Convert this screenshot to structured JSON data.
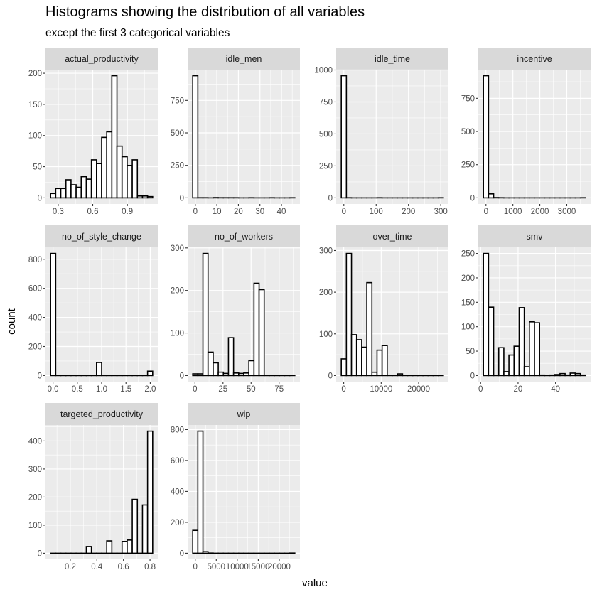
{
  "chart_data": {
    "type": "bar",
    "title": "Histograms showing the distribution of all variables",
    "subtitle": "except the first 3 categorical variables",
    "xlabel": "value",
    "ylabel": "count",
    "grid": true,
    "colors": {
      "panel_bg": "#EBEBEB",
      "strip_bg": "#D9D9D9",
      "bar_fill": "#FFFFFF",
      "bar_outline": "#000000",
      "axis_text": "#4D4D4D"
    },
    "panels": [
      {
        "name": "actual_productivity",
        "bin_range": [
          0.234,
          1.12
        ],
        "counts": [
          7,
          15,
          15,
          29,
          21,
          17,
          34,
          30,
          61,
          55,
          97,
          106,
          196,
          83,
          66,
          52,
          61,
          3,
          3,
          2
        ],
        "xticks": [
          {
            "value": 0.3,
            "label": "0.3"
          },
          {
            "value": 0.6,
            "label": "0.6"
          },
          {
            "value": 0.9,
            "label": "0.9"
          }
        ],
        "yticks": [
          {
            "value": 0,
            "label": "0"
          },
          {
            "value": 50,
            "label": "50"
          },
          {
            "value": 100,
            "label": "100"
          },
          {
            "value": 150,
            "label": "150"
          },
          {
            "value": 200,
            "label": "200"
          }
        ]
      },
      {
        "name": "idle_men",
        "bin_range": [
          -1.2,
          46.2
        ],
        "counts": [
          940,
          1,
          1,
          0,
          2,
          1,
          1,
          1,
          1,
          0,
          0,
          1,
          0,
          0,
          0,
          1,
          0,
          0,
          0,
          1
        ],
        "xticks": [
          {
            "value": 0,
            "label": "0"
          },
          {
            "value": 10,
            "label": "10"
          },
          {
            "value": 20,
            "label": "20"
          },
          {
            "value": 30,
            "label": "30"
          },
          {
            "value": 40,
            "label": "40"
          }
        ],
        "yticks": [
          {
            "value": 0,
            "label": "0"
          },
          {
            "value": 250,
            "label": "250"
          },
          {
            "value": 500,
            "label": "500"
          },
          {
            "value": 750,
            "label": "750"
          }
        ]
      },
      {
        "name": "idle_time",
        "bin_range": [
          -7.9,
          308
        ],
        "counts": [
          955,
          1,
          0,
          0,
          0,
          0,
          0,
          1,
          0,
          0,
          0,
          0,
          0,
          0,
          0,
          0,
          0,
          0,
          0,
          1
        ],
        "xticks": [
          {
            "value": 0,
            "label": "0"
          },
          {
            "value": 100,
            "label": "100"
          },
          {
            "value": 200,
            "label": "200"
          },
          {
            "value": 300,
            "label": "300"
          }
        ],
        "yticks": [
          {
            "value": 0,
            "label": "0"
          },
          {
            "value": 250,
            "label": "250"
          },
          {
            "value": 500,
            "label": "500"
          },
          {
            "value": 750,
            "label": "750"
          },
          {
            "value": 1000,
            "label": "1000"
          }
        ]
      },
      {
        "name": "incentive",
        "bin_range": [
          -95,
          3695
        ],
        "counts": [
          920,
          30,
          2,
          1,
          0,
          0,
          0,
          0,
          0,
          0,
          0,
          0,
          0,
          0,
          0,
          0,
          0,
          0,
          0,
          1
        ],
        "xticks": [
          {
            "value": 0,
            "label": "0"
          },
          {
            "value": 1000,
            "label": "1000"
          },
          {
            "value": 2000,
            "label": "2000"
          },
          {
            "value": 3000,
            "label": "3000"
          }
        ],
        "yticks": [
          {
            "value": 0,
            "label": "0"
          },
          {
            "value": 250,
            "label": "250"
          },
          {
            "value": 500,
            "label": "500"
          },
          {
            "value": 750,
            "label": "750"
          }
        ]
      },
      {
        "name": "no_of_style_change",
        "bin_range": [
          -0.05,
          2.05
        ],
        "counts": [
          840,
          0,
          0,
          0,
          0,
          0,
          0,
          0,
          0,
          90,
          0,
          0,
          0,
          0,
          0,
          0,
          0,
          0,
          0,
          30
        ],
        "xticks": [
          {
            "value": 0,
            "label": "0.0"
          },
          {
            "value": 0.5,
            "label": "0.5"
          },
          {
            "value": 1,
            "label": "1.0"
          },
          {
            "value": 1.5,
            "label": "1.5"
          },
          {
            "value": 2,
            "label": "2.0"
          }
        ],
        "yticks": [
          {
            "value": 0,
            "label": "0"
          },
          {
            "value": 200,
            "label": "200"
          },
          {
            "value": 400,
            "label": "400"
          },
          {
            "value": 600,
            "label": "600"
          },
          {
            "value": 800,
            "label": "800"
          }
        ]
      },
      {
        "name": "no_of_workers",
        "bin_range": [
          -2,
          89
        ],
        "counts": [
          4,
          4,
          287,
          55,
          30,
          8,
          5,
          89,
          6,
          5,
          6,
          35,
          217,
          202,
          0,
          0,
          0,
          0,
          0,
          1
        ],
        "xticks": [
          {
            "value": 0,
            "label": "0"
          },
          {
            "value": 25,
            "label": "25"
          },
          {
            "value": 50,
            "label": "50"
          },
          {
            "value": 75,
            "label": "75"
          }
        ],
        "yticks": [
          {
            "value": 0,
            "label": "0"
          },
          {
            "value": 100,
            "label": "100"
          },
          {
            "value": 200,
            "label": "200"
          },
          {
            "value": 300,
            "label": "300"
          }
        ]
      },
      {
        "name": "over_time",
        "bin_range": [
          -650,
          26600
        ],
        "counts": [
          40,
          293,
          98,
          86,
          68,
          223,
          8,
          61,
          72,
          1,
          1,
          4,
          0,
          0,
          0,
          0,
          0,
          0,
          0,
          1
        ],
        "xticks": [
          {
            "value": 0,
            "label": "0"
          },
          {
            "value": 10000,
            "label": "10000"
          },
          {
            "value": 20000,
            "label": "20000"
          }
        ],
        "yticks": [
          {
            "value": 0,
            "label": "0"
          },
          {
            "value": 100,
            "label": "100"
          },
          {
            "value": 200,
            "label": "200"
          },
          {
            "value": 300,
            "label": "300"
          }
        ]
      },
      {
        "name": "smv",
        "bin_range": [
          1.5,
          56
        ],
        "counts": [
          250,
          140,
          0,
          57,
          8,
          42,
          60,
          139,
          18,
          110,
          108,
          1,
          0,
          1,
          2,
          4,
          1,
          5,
          4,
          1
        ],
        "xticks": [
          {
            "value": 0,
            "label": "0"
          },
          {
            "value": 20,
            "label": "20"
          },
          {
            "value": 40,
            "label": "40"
          }
        ],
        "yticks": [
          {
            "value": 0,
            "label": "0"
          },
          {
            "value": 50,
            "label": "50"
          },
          {
            "value": 100,
            "label": "100"
          },
          {
            "value": 150,
            "label": "150"
          },
          {
            "value": 200,
            "label": "200"
          },
          {
            "value": 250,
            "label": "250"
          }
        ]
      },
      {
        "name": "targeted_productivity",
        "bin_range": [
          0.052,
          0.82
        ],
        "counts": [
          0,
          0,
          0,
          0,
          0,
          0,
          0,
          24,
          0,
          0,
          0,
          44,
          0,
          0,
          42,
          47,
          192,
          0,
          172,
          435
        ],
        "xticks": [
          {
            "value": 0.2,
            "label": "0.2"
          },
          {
            "value": 0.4,
            "label": "0.4"
          },
          {
            "value": 0.6,
            "label": "0.6"
          },
          {
            "value": 0.8,
            "label": "0.8"
          }
        ],
        "yticks": [
          {
            "value": 0,
            "label": "0"
          },
          {
            "value": 100,
            "label": "100"
          },
          {
            "value": 200,
            "label": "200"
          },
          {
            "value": 300,
            "label": "300"
          },
          {
            "value": 400,
            "label": "400"
          }
        ]
      },
      {
        "name": "wip",
        "bin_range": [
          -600,
          23700
        ],
        "counts": [
          148,
          790,
          10,
          1,
          0,
          0,
          0,
          0,
          0,
          0,
          0,
          0,
          0,
          0,
          0,
          0,
          0,
          0,
          0,
          1
        ],
        "xticks": [
          {
            "value": 0,
            "label": "0"
          },
          {
            "value": 5000,
            "label": "5000"
          },
          {
            "value": 10000,
            "label": "10000"
          },
          {
            "value": 15000,
            "label": "15000"
          },
          {
            "value": 20000,
            "label": "20000"
          }
        ],
        "yticks": [
          {
            "value": 0,
            "label": "0"
          },
          {
            "value": 200,
            "label": "200"
          },
          {
            "value": 400,
            "label": "400"
          },
          {
            "value": 600,
            "label": "600"
          },
          {
            "value": 800,
            "label": "800"
          }
        ]
      }
    ]
  }
}
